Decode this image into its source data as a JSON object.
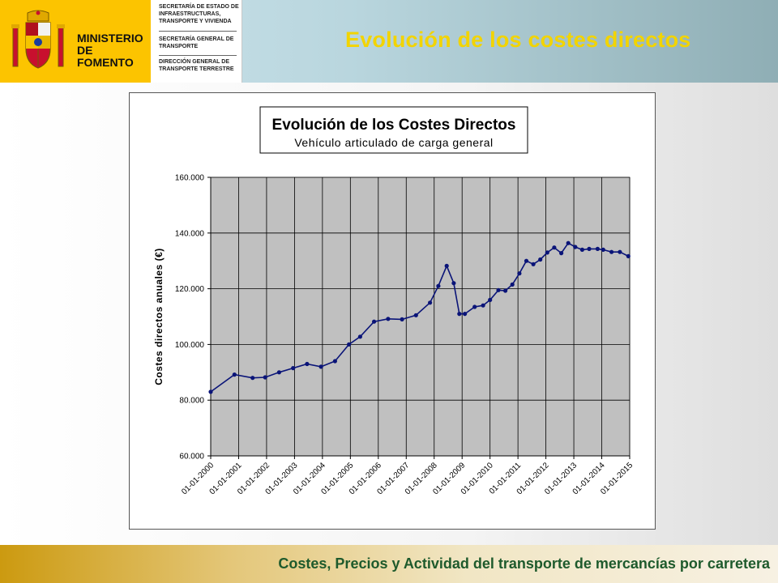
{
  "header": {
    "ministry": "MINISTERIO DE FOMENTO",
    "secretaria_estado": "SECRETARÍA DE ESTADO DE INFRAESTRUCTURAS, TRANSPORTE Y VIVIENDA",
    "secretaria_general": "SECRETARÍA GENERAL DE TRANSPORTE",
    "direccion_general": "DIRECCIÓN GENERAL DE TRANSPORTE TERRESTRE",
    "title": "Evolución de los costes directos",
    "brand_color": "#fcc400",
    "title_color": "#f2d400"
  },
  "footer": {
    "text": "Costes, Precios y Actividad del transporte de mercancías por carretera",
    "text_color": "#1e5a2c"
  },
  "chart_data": {
    "type": "line",
    "title": "Evolución de los Costes Directos",
    "subtitle": "Vehículo articulado de carga general",
    "xlabel": "",
    "ylabel": "Costes directos anuales (€)",
    "ylim": [
      60000,
      160000
    ],
    "yticks": [
      "60.000",
      "80.000",
      "100.000",
      "120.000",
      "140.000",
      "160.000"
    ],
    "xlim": [
      2000.0,
      2015.0
    ],
    "xticks": [
      "01-01-2000",
      "01-01-2001",
      "01-01-2002",
      "01-01-2003",
      "01-01-2004",
      "01-01-2005",
      "01-01-2006",
      "01-01-2007",
      "01-01-2008",
      "01-01-2009",
      "01-01-2010",
      "01-01-2011",
      "01-01-2012",
      "01-01-2013",
      "01-01-2014",
      "01-01-2015"
    ],
    "grid": true,
    "plot_bg": "#c0c0c0",
    "series_color": "#0a1478",
    "series": [
      {
        "x": [
          2000.0,
          2000.85,
          2001.5,
          2001.95,
          2002.45,
          2002.95,
          2003.45,
          2003.95,
          2004.45,
          2004.95,
          2005.35,
          2005.85,
          2006.35,
          2006.85,
          2007.35,
          2007.85,
          2008.15,
          2008.45,
          2008.7,
          2008.9,
          2009.1,
          2009.45,
          2009.75,
          2010.0,
          2010.3,
          2010.55,
          2010.8,
          2011.05,
          2011.3,
          2011.55,
          2011.8,
          2012.05,
          2012.3,
          2012.55,
          2012.8,
          2013.05,
          2013.3,
          2013.55,
          2013.85,
          2014.05,
          2014.35,
          2014.65,
          2014.95
        ],
        "values": [
          83000,
          89200,
          88000,
          88200,
          90000,
          91500,
          93000,
          92000,
          94000,
          100000,
          102800,
          108200,
          109200,
          109000,
          110500,
          115000,
          121000,
          128200,
          122000,
          111000,
          111000,
          113500,
          114000,
          116000,
          119500,
          119300,
          121500,
          125500,
          130000,
          128800,
          130500,
          133000,
          134800,
          132800,
          136400,
          135000,
          134000,
          134300,
          134300,
          134000,
          133200,
          133200,
          131700
        ]
      }
    ]
  }
}
